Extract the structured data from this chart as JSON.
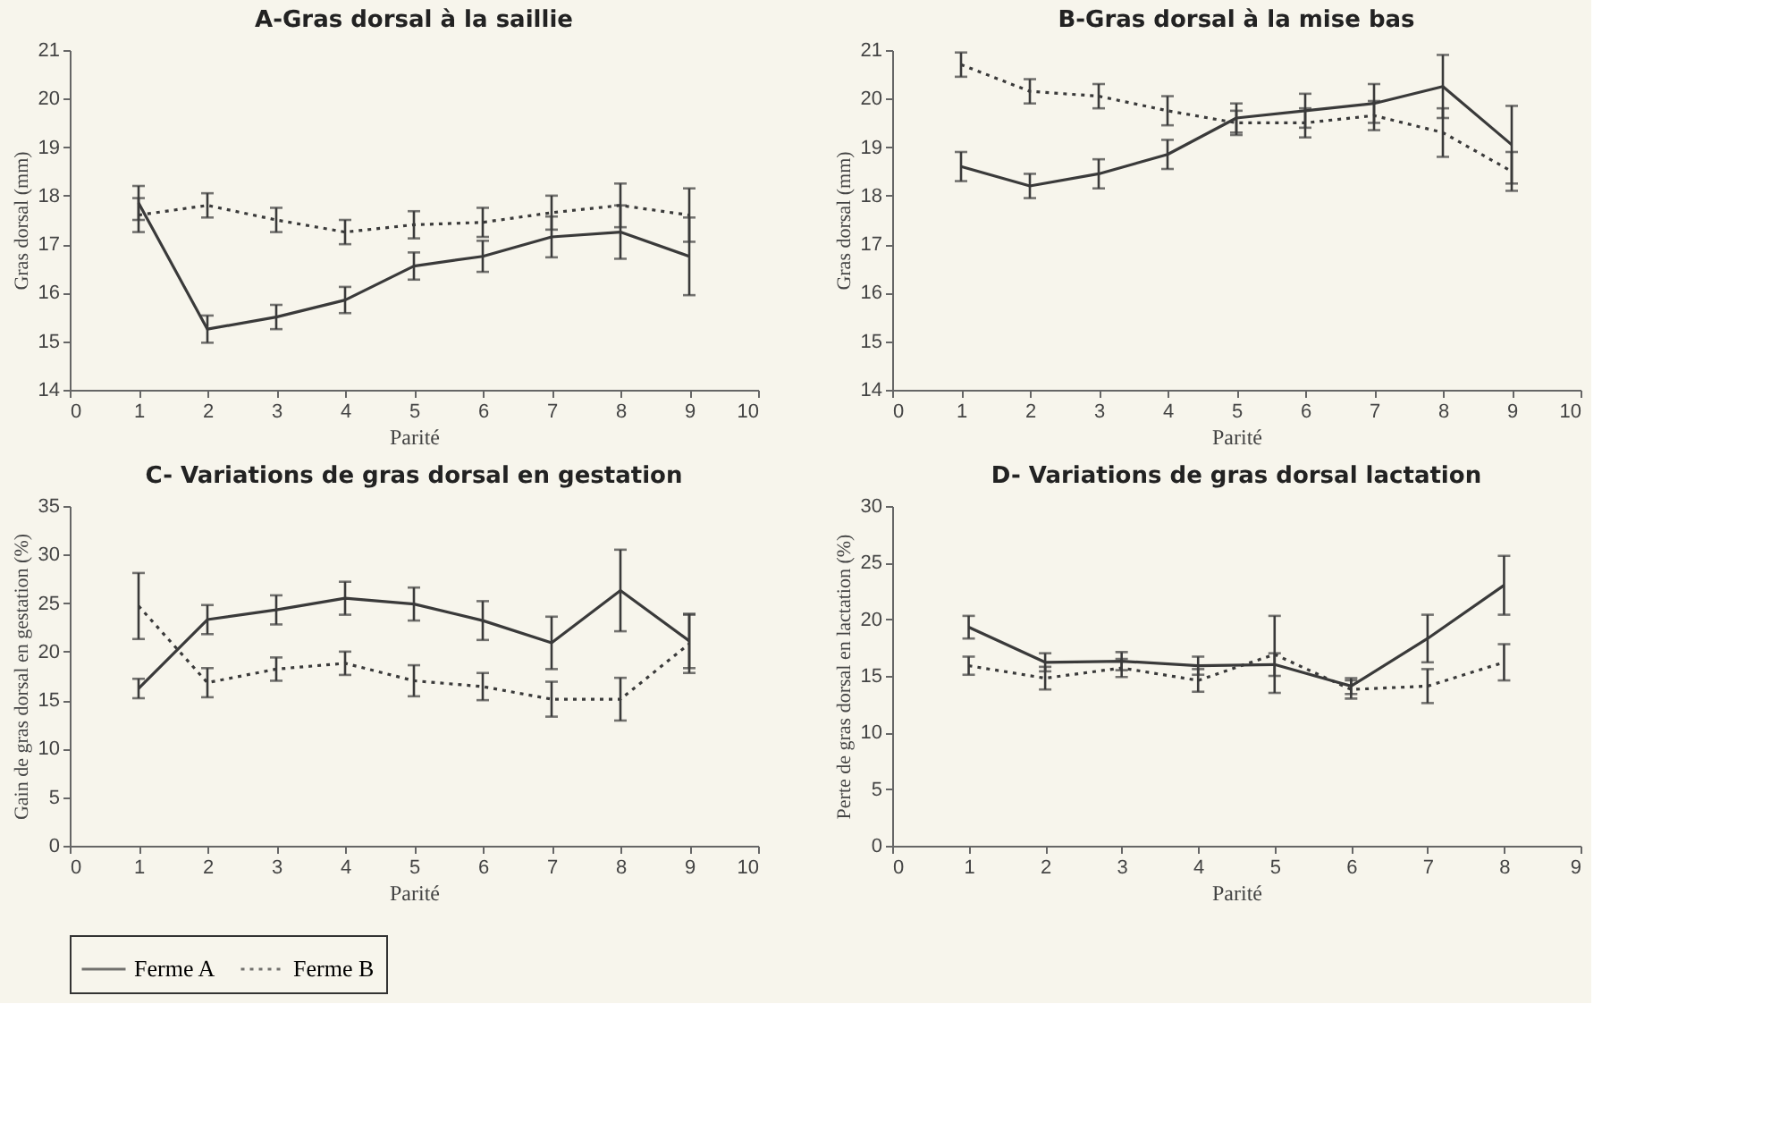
{
  "chart_data": [
    {
      "type": "line",
      "title": "A-Gras dorsal à la saillie",
      "xlabel": "Parité",
      "ylabel": "Gras dorsal (mm)",
      "x": [
        1,
        2,
        3,
        4,
        5,
        6,
        7,
        8,
        9
      ],
      "xlim": [
        0,
        10
      ],
      "xticks": [
        0,
        1,
        2,
        3,
        4,
        5,
        6,
        7,
        8,
        9,
        10
      ],
      "ylim": [
        14,
        21
      ],
      "yticks": [
        14,
        15,
        16,
        17,
        18,
        19,
        20,
        21
      ],
      "legend": false,
      "grid": false,
      "marker": "none",
      "series": [
        {
          "color": "#3a3a3a",
          "line_style": "solid",
          "values": [
            17.85,
            15.25,
            15.5,
            15.85,
            16.55,
            16.75,
            17.15,
            17.25,
            16.75
          ],
          "errors": [
            0.35,
            0.28,
            0.25,
            0.27,
            0.28,
            0.32,
            0.42,
            0.55,
            0.8
          ]
        },
        {
          "color": "#3a3a3a",
          "line_style": "dotted",
          "values": [
            17.6,
            17.8,
            17.5,
            17.25,
            17.4,
            17.45,
            17.65,
            17.8,
            17.6
          ],
          "errors": [
            0.35,
            0.25,
            0.25,
            0.25,
            0.28,
            0.3,
            0.35,
            0.45,
            0.55
          ]
        }
      ]
    },
    {
      "type": "line",
      "title": "B-Gras dorsal à la mise bas",
      "xlabel": "Parité",
      "ylabel": "Gras dorsal (mm)",
      "x": [
        1,
        2,
        3,
        4,
        5,
        6,
        7,
        8,
        9
      ],
      "xlim": [
        0,
        10
      ],
      "xticks": [
        0,
        1,
        2,
        3,
        4,
        5,
        6,
        7,
        8,
        9,
        10
      ],
      "ylim": [
        14,
        21
      ],
      "yticks": [
        14,
        15,
        16,
        17,
        18,
        19,
        20,
        21
      ],
      "legend": false,
      "grid": false,
      "marker": "none",
      "series": [
        {
          "color": "#3a3a3a",
          "line_style": "solid",
          "values": [
            18.6,
            18.2,
            18.45,
            18.85,
            19.6,
            19.75,
            19.9,
            20.25,
            19.05
          ],
          "errors": [
            0.3,
            0.25,
            0.3,
            0.3,
            0.3,
            0.35,
            0.4,
            0.65,
            0.8
          ]
        },
        {
          "color": "#3a3a3a",
          "line_style": "dotted",
          "values": [
            20.7,
            20.15,
            20.05,
            19.75,
            19.5,
            19.5,
            19.65,
            19.3,
            18.5
          ],
          "errors": [
            0.25,
            0.25,
            0.25,
            0.3,
            0.25,
            0.3,
            0.3,
            0.5,
            0.4
          ]
        }
      ]
    },
    {
      "type": "line",
      "title": "C- Variations de gras dorsal en gestation",
      "xlabel": "Parité",
      "ylabel": "Gain de gras dorsal en gestation (%)",
      "x": [
        1,
        2,
        3,
        4,
        5,
        6,
        7,
        8,
        9
      ],
      "xlim": [
        0,
        10
      ],
      "xticks": [
        0,
        1,
        2,
        3,
        4,
        5,
        6,
        7,
        8,
        9,
        10
      ],
      "ylim": [
        0,
        35
      ],
      "yticks": [
        0,
        5,
        10,
        15,
        20,
        25,
        30,
        35
      ],
      "legend": "bottom",
      "grid": false,
      "marker": "none",
      "series": [
        {
          "name": "Ferme A",
          "color": "#3a3a3a",
          "line_style": "solid",
          "values": [
            16.2,
            23.3,
            24.3,
            25.5,
            24.9,
            23.2,
            20.9,
            26.3,
            21.1
          ],
          "errors": [
            1,
            1.5,
            1.5,
            1.7,
            1.7,
            2,
            2.7,
            4.2,
            2.8
          ]
        },
        {
          "name": "Ferme B",
          "color": "#3a3a3a",
          "line_style": "dotted",
          "values": [
            24.7,
            16.8,
            18.2,
            18.8,
            17,
            16.4,
            15.1,
            15.1,
            20.8
          ],
          "errors": [
            3.4,
            1.5,
            1.2,
            1.2,
            1.6,
            1.4,
            1.8,
            2.2,
            3
          ]
        }
      ]
    },
    {
      "type": "line",
      "title": "D- Variations de gras dorsal lactation",
      "xlabel": "Parité",
      "ylabel": "Perte de gras dorsal en lactation (%)",
      "x": [
        1,
        2,
        3,
        4,
        5,
        6,
        7,
        8
      ],
      "xlim": [
        0,
        9
      ],
      "xticks": [
        0,
        1,
        2,
        3,
        4,
        5,
        6,
        7,
        8,
        9
      ],
      "ylim": [
        0,
        30
      ],
      "yticks": [
        0,
        5,
        10,
        15,
        20,
        25,
        30
      ],
      "legend": false,
      "grid": false,
      "marker": "none",
      "series": [
        {
          "color": "#3a3a3a",
          "line_style": "solid",
          "values": [
            19.3,
            16.2,
            16.3,
            15.9,
            16,
            14.1,
            18.3,
            23
          ],
          "errors": [
            1,
            0.8,
            0.8,
            0.8,
            1,
            0.7,
            2.1,
            2.6
          ]
        },
        {
          "color": "#3a3a3a",
          "line_style": "dotted",
          "values": [
            15.9,
            14.8,
            15.7,
            14.6,
            16.9,
            13.8,
            14.1,
            16.2
          ],
          "errors": [
            0.8,
            1,
            0.8,
            1,
            3.4,
            0.8,
            1.5,
            1.6
          ]
        }
      ]
    }
  ]
}
